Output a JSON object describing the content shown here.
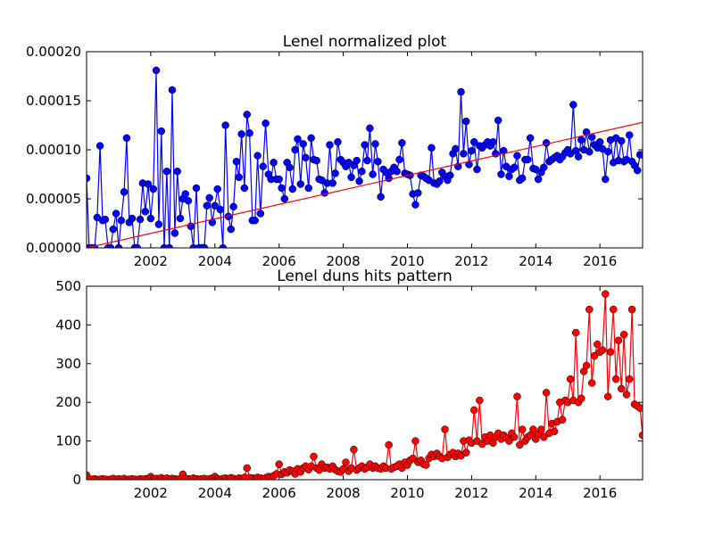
{
  "chart_data": [
    {
      "type": "line",
      "title": "Lenel normalized plot",
      "x": [
        2000,
        2000.08,
        2000.17,
        2000.25,
        2000.33,
        2000.42,
        2000.5,
        2000.58,
        2000.67,
        2000.75,
        2000.83,
        2000.92,
        2001,
        2001.08,
        2001.17,
        2001.25,
        2001.33,
        2001.42,
        2001.5,
        2001.58,
        2001.67,
        2001.75,
        2001.83,
        2001.92,
        2002,
        2002.08,
        2002.17,
        2002.25,
        2002.33,
        2002.42,
        2002.5,
        2002.58,
        2002.67,
        2002.75,
        2002.83,
        2002.92,
        2003,
        2003.08,
        2003.17,
        2003.25,
        2003.33,
        2003.42,
        2003.5,
        2003.58,
        2003.67,
        2003.75,
        2003.83,
        2003.92,
        2004,
        2004.08,
        2004.17,
        2004.25,
        2004.33,
        2004.42,
        2004.5,
        2004.58,
        2004.67,
        2004.75,
        2004.83,
        2004.92,
        2005,
        2005.08,
        2005.17,
        2005.25,
        2005.33,
        2005.42,
        2005.5,
        2005.58,
        2005.67,
        2005.75,
        2005.83,
        2005.92,
        2006,
        2006.08,
        2006.17,
        2006.25,
        2006.33,
        2006.42,
        2006.5,
        2006.58,
        2006.67,
        2006.75,
        2006.83,
        2006.92,
        2007,
        2007.08,
        2007.17,
        2007.25,
        2007.33,
        2007.42,
        2007.5,
        2007.58,
        2007.67,
        2007.75,
        2007.83,
        2007.92,
        2008,
        2008.08,
        2008.17,
        2008.25,
        2008.33,
        2008.42,
        2008.5,
        2008.58,
        2008.67,
        2008.75,
        2008.83,
        2008.92,
        2009,
        2009.08,
        2009.17,
        2009.25,
        2009.33,
        2009.42,
        2009.5,
        2009.58,
        2009.67,
        2009.75,
        2009.83,
        2009.92,
        2010,
        2010.08,
        2010.17,
        2010.25,
        2010.33,
        2010.42,
        2010.5,
        2010.58,
        2010.67,
        2010.75,
        2010.83,
        2010.92,
        2011,
        2011.08,
        2011.17,
        2011.25,
        2011.33,
        2011.42,
        2011.5,
        2011.58,
        2011.67,
        2011.75,
        2011.83,
        2011.92,
        2012,
        2012.08,
        2012.17,
        2012.25,
        2012.33,
        2012.42,
        2012.5,
        2012.58,
        2012.67,
        2012.75,
        2012.83,
        2012.92,
        2013,
        2013.08,
        2013.17,
        2013.25,
        2013.33,
        2013.42,
        2013.5,
        2013.58,
        2013.67,
        2013.75,
        2013.83,
        2013.92,
        2014,
        2014.08,
        2014.17,
        2014.25,
        2014.33,
        2014.42,
        2014.5,
        2014.58,
        2014.67,
        2014.75,
        2014.83,
        2014.92,
        2015,
        2015.08,
        2015.17,
        2015.25,
        2015.33,
        2015.42,
        2015.5,
        2015.58,
        2015.67,
        2015.75,
        2015.83,
        2015.92,
        2016,
        2016.08,
        2016.17,
        2016.25,
        2016.33,
        2016.42,
        2016.5,
        2016.58,
        2016.67,
        2016.75,
        2016.83,
        2016.92,
        2017,
        2017.08,
        2017.17,
        2017.25,
        2017.33
      ],
      "series": [
        {
          "color": "#0000ff",
          "marker": true,
          "values": [
            7.1e-05,
            0,
            0,
            0,
            3.1e-05,
            0.000104,
            2.8e-05,
            2.9e-05,
            0,
            0,
            1.9e-05,
            3.5e-05,
            0,
            2.8e-05,
            5.7e-05,
            0.000112,
            2.6e-05,
            3e-05,
            0,
            0,
            2.9e-05,
            6.6e-05,
            3.7e-05,
            6.5e-05,
            3e-05,
            6e-05,
            0.000181,
            2.4e-05,
            0.000119,
            0,
            7.8e-05,
            0,
            0.000161,
            1.5e-05,
            7.8e-05,
            3e-05,
            5e-05,
            5.5e-05,
            4.8e-05,
            2.2e-05,
            0,
            6.1e-05,
            0,
            0,
            0,
            4.3e-05,
            5.1e-05,
            2.6e-05,
            4.3e-05,
            6e-05,
            3.9e-05,
            0,
            0.000125,
            3.2e-05,
            1.9e-05,
            4.2e-05,
            8.8e-05,
            7.2e-05,
            0.000116,
            6.1e-05,
            0.000136,
            0.000117,
            2.8e-05,
            2.8e-05,
            9.4e-05,
            3.5e-05,
            8.3e-05,
            0.000127,
            7.5e-05,
            7e-05,
            8.7e-05,
            7e-05,
            7e-05,
            6.1e-05,
            5e-05,
            8.7e-05,
            8.2e-05,
            6e-05,
            0.0001,
            0.000111,
            6.5e-05,
            0.000106,
            9.2e-05,
            6.1e-05,
            0.000112,
            9e-05,
            8.9e-05,
            7e-05,
            6.9e-05,
            5.6e-05,
            6.6e-05,
            0.000105,
            6.6e-05,
            7.6e-05,
            0.000108,
            9e-05,
            8.7e-05,
            8.3e-05,
            8.7e-05,
            7.2e-05,
            8.4e-05,
            8.9e-05,
            6.8e-05,
            7.8e-05,
            0.000105,
            8.9e-05,
            0.000122,
            7.5e-05,
            0.000106,
            8.8e-05,
            5.2e-05,
            8e-05,
            7.7e-05,
            7.1e-05,
            7.8e-05,
            8.2e-05,
            7.8e-05,
            9e-05,
            0.000107,
            7.6e-05,
            7.5e-05,
            7.4e-05,
            5.5e-05,
            4.4e-05,
            5.6e-05,
            7.4e-05,
            7.3e-05,
            7.1e-05,
            6.9e-05,
            0.000102,
            6.6e-05,
            6.5e-05,
            6.8e-05,
            7.7e-05,
            7.3e-05,
            6.9e-05,
            7.4e-05,
            9.6e-05,
            0.000101,
            8.3e-05,
            0.000159,
            9.6e-05,
            0.000129,
            8.5e-05,
            9.9e-05,
            0.000108,
            8e-05,
            0.000104,
            0.000102,
            0.000105,
            0.000108,
            0.000104,
            0.000108,
            9.6e-05,
            0.00013,
            7.5e-05,
            9.9e-05,
            8.3e-05,
            7.3e-05,
            8e-05,
            8.2e-05,
            9.4e-05,
            6.9e-05,
            7.1e-05,
            9e-05,
            9e-05,
            0.000112,
            8.1e-05,
            8e-05,
            7e-05,
            7.7e-05,
            8.2e-05,
            0.000107,
            8.8e-05,
            9e-05,
            9.2e-05,
            9.4e-05,
            9e-05,
            9.3e-05,
            9.7e-05,
            0.0001,
            9.6e-05,
            0.000146,
            9.9e-05,
            9.3e-05,
            0.00011,
            0.0001,
            0.000118,
            9.8e-05,
            0.000113,
            0.000105,
            0.000102,
            0.000108,
            0.000101,
            7e-05,
            9.8e-05,
            0.00011,
            8.7e-05,
            0.000112,
            8.9e-05,
            0.000109,
            8.8e-05,
            9e-05,
            0.000115,
            8.8e-05,
            8.4e-05,
            7.9e-05,
            9.5e-05,
            9.5e-05
          ]
        },
        {
          "color": "#ff0000",
          "marker": false,
          "x": [
            2000,
            2017.33
          ],
          "values": [
            0,
            0.000128
          ]
        }
      ],
      "xlim": [
        2000,
        2017.33
      ],
      "xticks": [
        2002,
        2004,
        2006,
        2008,
        2010,
        2012,
        2014,
        2016
      ],
      "ylim": [
        0,
        0.0002
      ],
      "yticks": [
        {
          "value": 0,
          "label": "0.00000"
        },
        {
          "value": 5e-05,
          "label": "0.00005"
        },
        {
          "value": 0.0001,
          "label": "0.00010"
        },
        {
          "value": 0.00015,
          "label": "0.00015"
        },
        {
          "value": 0.0002,
          "label": "0.00020"
        }
      ]
    },
    {
      "type": "line",
      "title": "Lenel duns hits pattern",
      "x": [
        2000,
        2000.08,
        2000.17,
        2000.25,
        2000.33,
        2000.42,
        2000.5,
        2000.58,
        2000.67,
        2000.75,
        2000.83,
        2000.92,
        2001,
        2001.08,
        2001.17,
        2001.25,
        2001.33,
        2001.42,
        2001.5,
        2001.58,
        2001.67,
        2001.75,
        2001.83,
        2001.92,
        2002,
        2002.08,
        2002.17,
        2002.25,
        2002.33,
        2002.42,
        2002.5,
        2002.58,
        2002.67,
        2002.75,
        2002.83,
        2002.92,
        2003,
        2003.08,
        2003.17,
        2003.25,
        2003.33,
        2003.42,
        2003.5,
        2003.58,
        2003.67,
        2003.75,
        2003.83,
        2003.92,
        2004,
        2004.08,
        2004.17,
        2004.25,
        2004.33,
        2004.42,
        2004.5,
        2004.58,
        2004.67,
        2004.75,
        2004.83,
        2004.92,
        2005,
        2005.08,
        2005.17,
        2005.25,
        2005.33,
        2005.42,
        2005.5,
        2005.58,
        2005.67,
        2005.75,
        2005.83,
        2005.92,
        2006,
        2006.08,
        2006.17,
        2006.25,
        2006.33,
        2006.42,
        2006.5,
        2006.58,
        2006.67,
        2006.75,
        2006.83,
        2006.92,
        2007,
        2007.08,
        2007.17,
        2007.25,
        2007.33,
        2007.42,
        2007.5,
        2007.58,
        2007.67,
        2007.75,
        2007.83,
        2007.92,
        2008,
        2008.08,
        2008.17,
        2008.25,
        2008.33,
        2008.42,
        2008.5,
        2008.58,
        2008.67,
        2008.75,
        2008.83,
        2008.92,
        2009,
        2009.08,
        2009.17,
        2009.25,
        2009.33,
        2009.42,
        2009.5,
        2009.58,
        2009.67,
        2009.75,
        2009.83,
        2009.92,
        2010,
        2010.08,
        2010.17,
        2010.25,
        2010.33,
        2010.42,
        2010.5,
        2010.58,
        2010.67,
        2010.75,
        2010.83,
        2010.92,
        2011,
        2011.08,
        2011.17,
        2011.25,
        2011.33,
        2011.42,
        2011.5,
        2011.58,
        2011.67,
        2011.75,
        2011.83,
        2011.92,
        2012,
        2012.08,
        2012.17,
        2012.25,
        2012.33,
        2012.42,
        2012.5,
        2012.58,
        2012.67,
        2012.75,
        2012.83,
        2012.92,
        2013,
        2013.08,
        2013.17,
        2013.25,
        2013.33,
        2013.42,
        2013.5,
        2013.58,
        2013.67,
        2013.75,
        2013.83,
        2013.92,
        2014,
        2014.08,
        2014.17,
        2014.25,
        2014.33,
        2014.42,
        2014.5,
        2014.58,
        2014.67,
        2014.75,
        2014.83,
        2014.92,
        2015,
        2015.08,
        2015.17,
        2015.25,
        2015.33,
        2015.42,
        2015.5,
        2015.58,
        2015.67,
        2015.75,
        2015.83,
        2015.92,
        2016,
        2016.08,
        2016.17,
        2016.25,
        2016.33,
        2016.42,
        2016.5,
        2016.58,
        2016.67,
        2016.75,
        2016.83,
        2016.92,
        2017,
        2017.08,
        2017.17,
        2017.25,
        2017.33
      ],
      "series": [
        {
          "color": "#ff0000",
          "marker": true,
          "values": [
            12,
            2,
            1,
            2,
            0,
            1,
            2,
            1,
            0,
            1,
            3,
            1,
            2,
            1,
            3,
            0,
            1,
            2,
            1,
            0,
            2,
            1,
            2,
            3,
            8,
            2,
            3,
            1,
            5,
            2,
            4,
            1,
            3,
            2,
            1,
            2,
            14,
            3,
            2,
            1,
            4,
            2,
            1,
            2,
            3,
            1,
            2,
            4,
            8,
            2,
            1,
            3,
            4,
            2,
            5,
            3,
            1,
            4,
            2,
            6,
            30,
            5,
            4,
            3,
            6,
            4,
            2,
            5,
            8,
            7,
            10,
            15,
            40,
            14,
            20,
            18,
            25,
            22,
            15,
            28,
            20,
            30,
            35,
            26,
            35,
            60,
            30,
            25,
            40,
            30,
            32,
            28,
            35,
            26,
            22,
            20,
            28,
            45,
            22,
            30,
            78,
            25,
            30,
            35,
            28,
            32,
            40,
            30,
            35,
            30,
            28,
            35,
            30,
            90,
            28,
            32,
            35,
            40,
            30,
            45,
            38,
            50,
            55,
            100,
            45,
            50,
            40,
            38,
            55,
            65,
            60,
            68,
            60,
            55,
            130,
            58,
            65,
            70,
            60,
            68,
            62,
            100,
            70,
            102,
            95,
            180,
            100,
            205,
            92,
            110,
            100,
            115,
            95,
            110,
            120,
            105,
            115,
            108,
            100,
            120,
            110,
            215,
            90,
            130,
            100,
            110,
            115,
            130,
            105,
            118,
            130,
            110,
            225,
            120,
            145,
            125,
            150,
            200,
            155,
            205,
            200,
            260,
            205,
            380,
            200,
            210,
            280,
            295,
            440,
            250,
            320,
            350,
            330,
            335,
            480,
            215,
            330,
            440,
            260,
            360,
            235,
            375,
            220,
            260,
            440,
            195,
            190,
            185,
            115
          ]
        }
      ],
      "xlim": [
        2000,
        2017.33
      ],
      "xticks": [
        2002,
        2004,
        2006,
        2008,
        2010,
        2012,
        2014,
        2016
      ],
      "ylim": [
        0,
        500
      ],
      "yticks": [
        0,
        100,
        200,
        300,
        400,
        500
      ]
    }
  ]
}
